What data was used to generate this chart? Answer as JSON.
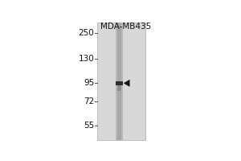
{
  "title": "MDA-MB435",
  "outer_bg": "#ffffff",
  "blot_bg": "#d8d8d8",
  "lane_bg": "#c0c0c0",
  "band_color": "#303030",
  "arrow_color": "#111111",
  "mw_markers": [
    250,
    130,
    95,
    72,
    55
  ],
  "band_mw": 97,
  "title_fontsize": 7.5,
  "marker_fontsize": 7.5
}
